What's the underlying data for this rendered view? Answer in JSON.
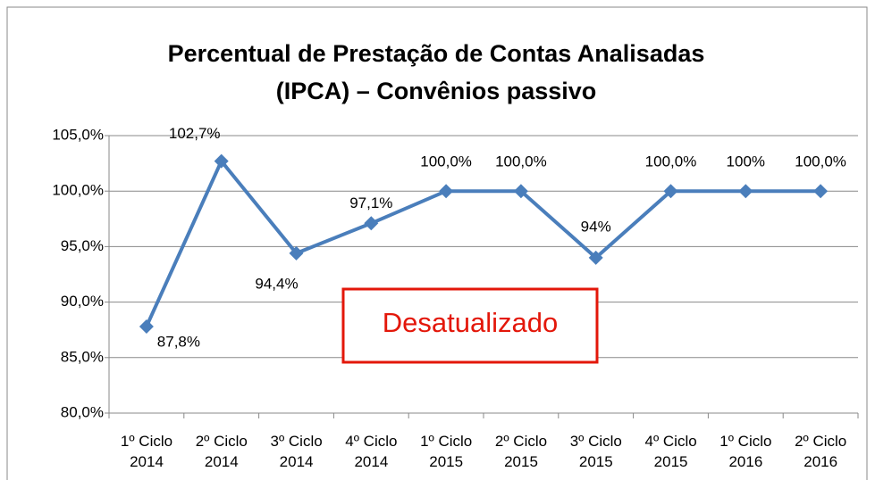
{
  "chart_data": {
    "type": "line",
    "title": "Percentual de Prestação de Contas Analisadas (IPCA) – Convênios passivo",
    "categories": [
      "1º Ciclo\n2014",
      "2º Ciclo\n2014",
      "3º Ciclo\n2014",
      "4º Ciclo\n2014",
      "1º Ciclo\n2015",
      "2º Ciclo\n2015",
      "3º Ciclo\n2015",
      "4º Ciclo\n2015",
      "1º Ciclo\n2016",
      "2º Ciclo\n2016"
    ],
    "series": [
      {
        "name": "IPCA",
        "color": "#4a7ebb",
        "values": [
          87.8,
          102.7,
          94.4,
          97.1,
          100,
          100,
          94,
          100,
          100,
          100
        ],
        "value_labels": [
          "87,8%",
          "102,7%",
          "94,4%",
          "97,1%",
          "100,0%",
          "100,0%",
          "94%",
          "100,0%",
          "100%",
          "100,0%"
        ]
      }
    ],
    "ylim": [
      80,
      105
    ],
    "yticks": [
      {
        "value": 80,
        "label": "80,0%"
      },
      {
        "value": 85,
        "label": "85,0%"
      },
      {
        "value": 90,
        "label": "90,0%"
      },
      {
        "value": 95,
        "label": "95,0%"
      },
      {
        "value": 100,
        "label": "100,0%"
      },
      {
        "value": 105,
        "label": "105,0%"
      }
    ],
    "grid": true,
    "annotation": "Desatualizado"
  }
}
